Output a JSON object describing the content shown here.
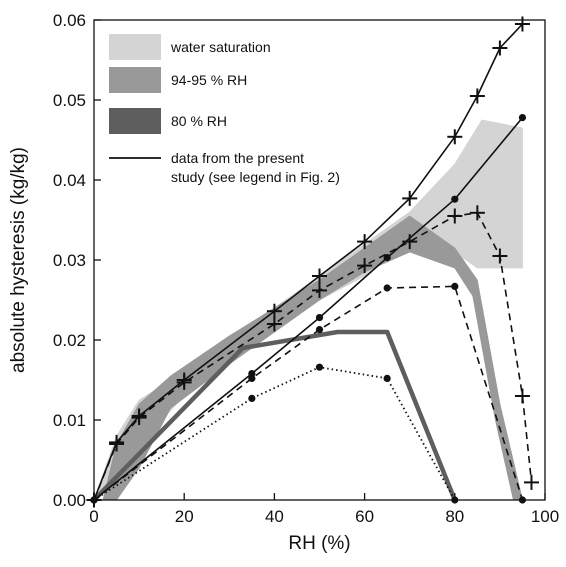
{
  "chart_data": {
    "type": "line",
    "xlabel": "RH (%)",
    "ylabel": "absolute hysteresis (kg/kg)",
    "xlim": [
      0,
      100
    ],
    "ylim": [
      0,
      0.06
    ],
    "grid": false,
    "legend_placement": "top-left",
    "x_ticks": [
      "0",
      "20",
      "40",
      "60",
      "80",
      "100"
    ],
    "y_ticks": [
      "0.00",
      "0.01",
      "0.02",
      "0.03",
      "0.04",
      "0.05",
      "0.06"
    ],
    "legend": [
      {
        "label": "water saturation",
        "kind": "band",
        "color": "#d4d4d4"
      },
      {
        "label": "94-95 % RH",
        "kind": "band",
        "color": "#999999"
      },
      {
        "label": "80 % RH",
        "kind": "band",
        "color": "#5e5e5e"
      },
      {
        "label": "data from the present",
        "label2": "study  (see legend in Fig. 2)",
        "kind": "line",
        "color": "#111111"
      }
    ],
    "bands": [
      {
        "name": "water saturation",
        "color": "#d4d4d4",
        "polygon": [
          [
            0,
            0
          ],
          [
            5,
            0.008
          ],
          [
            10,
            0.0125
          ],
          [
            20,
            0.016
          ],
          [
            30,
            0.02
          ],
          [
            40,
            0.024
          ],
          [
            50,
            0.028
          ],
          [
            60,
            0.032
          ],
          [
            70,
            0.036
          ],
          [
            80,
            0.042
          ],
          [
            86,
            0.0475
          ],
          [
            95,
            0.0465
          ],
          [
            95,
            0.029
          ],
          [
            85,
            0.029
          ],
          [
            80,
            0.031
          ],
          [
            70,
            0.031
          ],
          [
            65,
            0.03
          ],
          [
            60,
            0.028
          ],
          [
            50,
            0.025
          ],
          [
            40,
            0.021
          ],
          [
            30,
            0.017
          ],
          [
            20,
            0.013
          ],
          [
            10,
            0.007
          ],
          [
            5,
            0.003
          ],
          [
            0,
            0
          ]
        ]
      },
      {
        "name": "94-95 % RH",
        "color": "#999999",
        "polygon": [
          [
            2,
            0
          ],
          [
            5,
            0.007
          ],
          [
            10,
            0.012
          ],
          [
            17,
            0.0155
          ],
          [
            30,
            0.0205
          ],
          [
            40,
            0.024
          ],
          [
            50,
            0.0275
          ],
          [
            60,
            0.0315
          ],
          [
            70,
            0.0355
          ],
          [
            80,
            0.0315
          ],
          [
            85,
            0.0275
          ],
          [
            90,
            0.012
          ],
          [
            95,
            0
          ],
          [
            93,
            0
          ],
          [
            89,
            0.01
          ],
          [
            84,
            0.0255
          ],
          [
            80,
            0.029
          ],
          [
            70,
            0.031
          ],
          [
            60,
            0.0285
          ],
          [
            50,
            0.025
          ],
          [
            40,
            0.021
          ],
          [
            30,
            0.017
          ],
          [
            17,
            0.0115
          ],
          [
            10,
            0.004
          ],
          [
            5,
            0
          ],
          [
            2,
            0
          ]
        ]
      }
    ],
    "series": [
      {
        "name": "80 % RH",
        "style": "thick",
        "color": "#5e5e5e",
        "marker": "none",
        "x": [
          0,
          33,
          54,
          65,
          80
        ],
        "y": [
          0,
          0.019,
          0.021,
          0.021,
          0
        ]
      },
      {
        "style": "solid",
        "marker": "plus",
        "x": [
          0,
          5,
          10,
          20,
          40,
          50,
          60,
          70,
          80,
          85,
          90,
          95
        ],
        "y": [
          0,
          0.0072,
          0.0105,
          0.015,
          0.0236,
          0.028,
          0.0323,
          0.0377,
          0.0454,
          0.0505,
          0.0565,
          0.0595
        ]
      },
      {
        "style": "dashed",
        "marker": "plus",
        "x": [
          0,
          5,
          10,
          20,
          40,
          50,
          60,
          70,
          80,
          85,
          90,
          95,
          97
        ],
        "y": [
          0,
          0.007,
          0.0103,
          0.0147,
          0.022,
          0.0262,
          0.0293,
          0.0323,
          0.0355,
          0.0359,
          0.0305,
          0.013,
          0.0022
        ]
      },
      {
        "style": "solid",
        "marker": "dot",
        "x": [
          0,
          35,
          50,
          65,
          80,
          95
        ],
        "y": [
          0,
          0.0158,
          0.0228,
          0.0303,
          0.0376,
          0.0478
        ]
      },
      {
        "style": "dashed",
        "marker": "dot",
        "x": [
          0,
          35,
          50,
          65,
          80,
          95
        ],
        "y": [
          0,
          0.0152,
          0.0213,
          0.0265,
          0.0267,
          0
        ]
      },
      {
        "style": "dotted",
        "marker": "dot",
        "x": [
          0,
          35,
          50,
          65,
          80
        ],
        "y": [
          0,
          0.0127,
          0.0166,
          0.0152,
          0
        ]
      }
    ]
  }
}
